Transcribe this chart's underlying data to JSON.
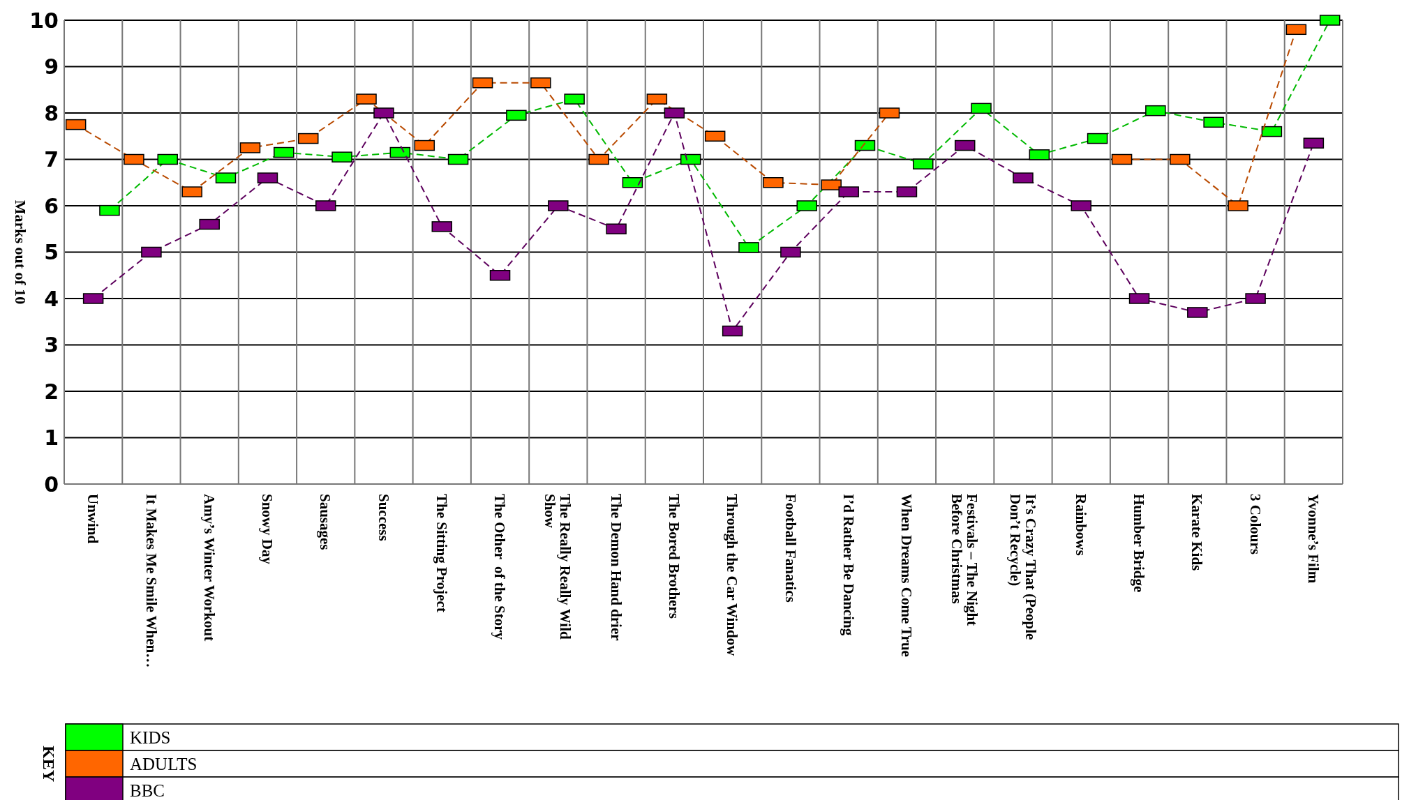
{
  "chart_data": {
    "type": "line",
    "ylabel": "Marks out of 10",
    "legend_title": "KEY",
    "legend": "bottom",
    "grid": true,
    "marker": "square",
    "line_style": "dashed",
    "categories": [
      "Unwind",
      "It Makes Me Smile When…",
      "Amy’s Winter Workout",
      "Snowy Day",
      "Sausages",
      "Success",
      "The Sitting Project",
      "The Other  of the Story",
      "The Really Really Wild Show",
      "The Demon Hand drier",
      "The Bored Brothers",
      "Through the Car Window",
      "Football Fanatics",
      "I’d Rather Be Dancing",
      "When Dreams Come True",
      "Festivals – The Night Before Christmas",
      "It’s Crazy That (People Don’t Recycle)",
      "Rainbows",
      "Humber Bridge",
      "Karate Kids",
      "3 Colours",
      "Yvonne’s Film"
    ],
    "ylim": [
      0,
      10
    ],
    "yticks": [
      0,
      1,
      2,
      3,
      4,
      5,
      6,
      7,
      8,
      9,
      10
    ],
    "series": [
      {
        "name": "KIDS",
        "color": "#00ff00",
        "values": [
          5.9,
          7.0,
          6.6,
          7.15,
          7.05,
          7.15,
          7.0,
          7.95,
          8.3,
          6.5,
          7.0,
          5.1,
          6.0,
          7.3,
          6.9,
          8.1,
          7.1,
          7.45,
          8.05,
          7.8,
          7.6,
          10.0
        ]
      },
      {
        "name": "ADULTS",
        "color": "#ff6600",
        "values": [
          7.75,
          7.0,
          6.3,
          7.25,
          7.45,
          8.3,
          7.3,
          8.65,
          8.65,
          7.0,
          8.3,
          7.5,
          6.5,
          6.45,
          8.0,
          null,
          null,
          null,
          7.0,
          7.0,
          6.0,
          9.8
        ]
      },
      {
        "name": "BBC",
        "color": "#800080",
        "values": [
          4.0,
          5.0,
          5.6,
          6.6,
          6.0,
          8.0,
          5.55,
          4.5,
          6.0,
          5.5,
          8.0,
          3.3,
          5.0,
          6.3,
          6.3,
          7.3,
          6.6,
          6.0,
          4.0,
          3.7,
          4.0,
          7.35
        ]
      }
    ]
  }
}
